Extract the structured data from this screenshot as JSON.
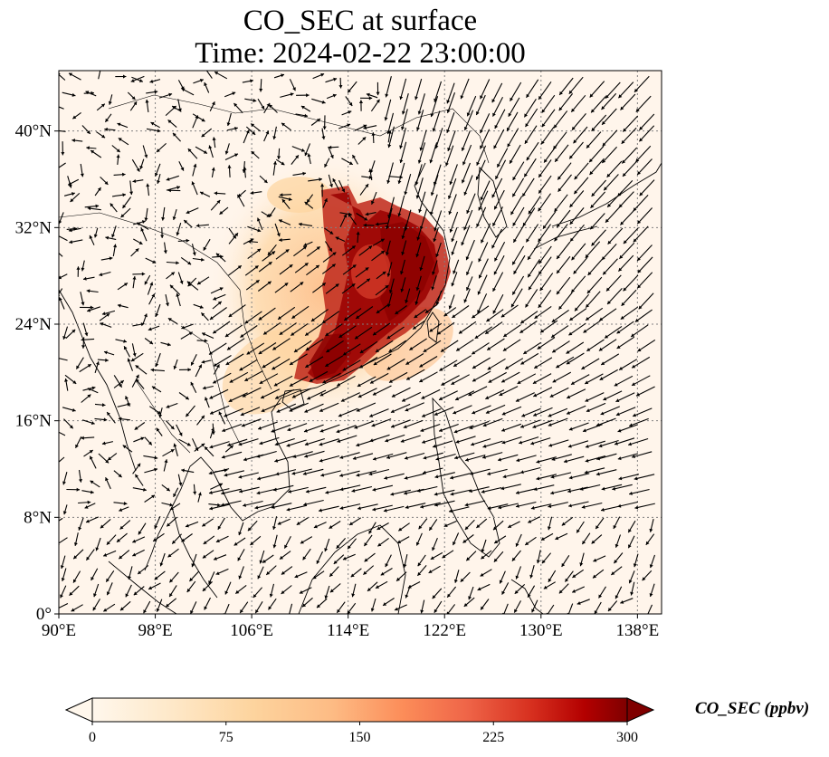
{
  "title": {
    "line1": "CO_SEC at surface",
    "line2": "Time: 2024-02-22 23:00:00"
  },
  "map": {
    "extent": {
      "lon": [
        90,
        140
      ],
      "lat": [
        0,
        45
      ]
    },
    "lon_ticks": [
      {
        "value": 90,
        "label": "90°E"
      },
      {
        "value": 98,
        "label": "98°E"
      },
      {
        "value": 106,
        "label": "106°E"
      },
      {
        "value": 114,
        "label": "114°E"
      },
      {
        "value": 122,
        "label": "122°E"
      },
      {
        "value": 130,
        "label": "130°E"
      },
      {
        "value": 138,
        "label": "138°E"
      }
    ],
    "lat_ticks": [
      {
        "value": 0,
        "label": "0°"
      },
      {
        "value": 8,
        "label": "8°N"
      },
      {
        "value": 16,
        "label": "16°N"
      },
      {
        "value": 24,
        "label": "24°N"
      },
      {
        "value": 32,
        "label": "32°N"
      },
      {
        "value": 40,
        "label": "40°N"
      }
    ],
    "gridlines": true,
    "background_color": "#fff5eb",
    "plume_core_color": "#8b0000",
    "wind_vectors": "black arrows"
  },
  "colorbar": {
    "label": "CO_SEC (ppbv)",
    "min": 0,
    "max": 300,
    "colormap": "OrRd",
    "extend": "both",
    "ticks": [
      {
        "value": 0,
        "label": "0"
      },
      {
        "value": 75,
        "label": "75"
      },
      {
        "value": 150,
        "label": "150"
      },
      {
        "value": 225,
        "label": "225"
      },
      {
        "value": 300,
        "label": "300"
      }
    ]
  }
}
